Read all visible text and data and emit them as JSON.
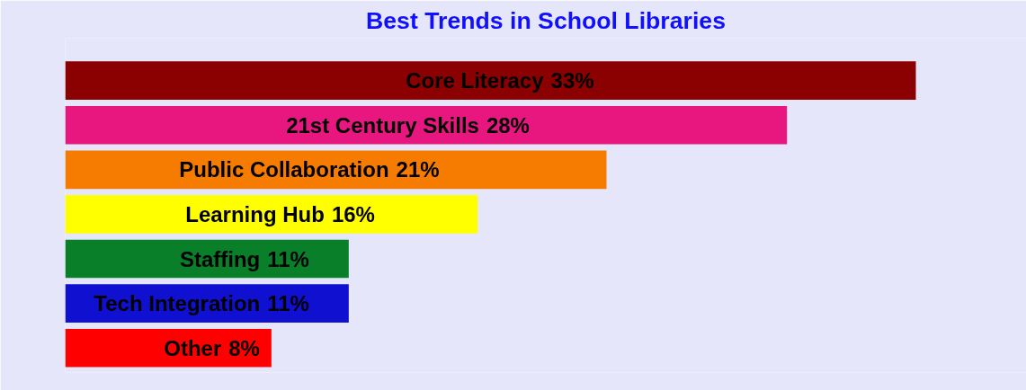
{
  "chart_data": {
    "type": "bar",
    "orientation": "horizontal",
    "title": "Best Trends in School Libraries",
    "categories": [
      "Core Literacy",
      "21st Century Skills",
      "Public Collaboration",
      "Learning Hub",
      "Staffing",
      "Tech Integration",
      "Other"
    ],
    "values": [
      33,
      28,
      21,
      16,
      11,
      11,
      8
    ],
    "value_labels": [
      "33%",
      "28%",
      "21%",
      "16%",
      "11%",
      "11%",
      "8%"
    ],
    "colors": [
      "#8b0000",
      "#e8177f",
      "#f57c00",
      "#ffff00",
      "#0a7f2a",
      "#1010d0",
      "#ff0000"
    ],
    "grid": false,
    "tick_labels": false
  }
}
